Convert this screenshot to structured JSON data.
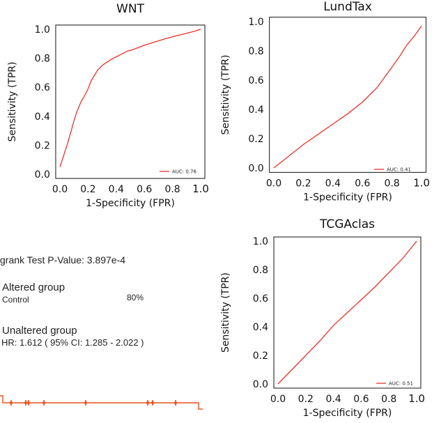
{
  "chart_data": [
    {
      "type": "line",
      "title": "WNT",
      "xlabel": "1-Specificity (FPR)",
      "ylabel": "Sensitivity (TPR)",
      "xlim": [
        0,
        1
      ],
      "ylim": [
        0,
        1
      ],
      "xticks": [
        "0.0",
        "0.2",
        "0.4",
        "0.6",
        "0.8",
        "1.0"
      ],
      "yticks": [
        "0.0",
        "0.2",
        "0.4",
        "0.6",
        "0.8",
        "1.0"
      ],
      "legend": "AUC: 0.76",
      "legend_position": "bottom-right",
      "line_color": "#e8322a",
      "series": [
        {
          "x": [
            0.0,
            0.03,
            0.06,
            0.08,
            0.1,
            0.12,
            0.15,
            0.18,
            0.2,
            0.22,
            0.25,
            0.27,
            0.3,
            0.33,
            0.36,
            0.4,
            0.44,
            0.48,
            0.52,
            0.56,
            0.6,
            0.65,
            0.7,
            0.75,
            0.8,
            0.85,
            0.9,
            0.95,
            1.0
          ],
          "y": [
            0.05,
            0.14,
            0.23,
            0.3,
            0.37,
            0.43,
            0.5,
            0.55,
            0.59,
            0.64,
            0.69,
            0.72,
            0.75,
            0.77,
            0.79,
            0.81,
            0.83,
            0.85,
            0.86,
            0.875,
            0.89,
            0.905,
            0.92,
            0.935,
            0.948,
            0.96,
            0.972,
            0.985,
            1.0
          ]
        }
      ]
    },
    {
      "type": "line",
      "title": "LundTax",
      "xlabel": "1-Specificity (FPR)",
      "ylabel": "Sensitivity (TPR)",
      "xlim": [
        0,
        1
      ],
      "ylim": [
        0,
        1
      ],
      "xticks": [
        "0.0",
        "0.2",
        "0.4",
        "0.6",
        "0.8",
        "1.0"
      ],
      "yticks": [
        "0.0",
        "0.2",
        "0.4",
        "0.6",
        "0.8",
        "1.0"
      ],
      "legend": "AUC: 0.41",
      "legend_position": "bottom-right",
      "line_color": "#e8322a",
      "series": [
        {
          "x": [
            0.0,
            0.1,
            0.2,
            0.3,
            0.4,
            0.5,
            0.6,
            0.65,
            0.7,
            0.75,
            0.8,
            0.85,
            0.9,
            0.95,
            1.0
          ],
          "y": [
            0.0,
            0.08,
            0.16,
            0.23,
            0.3,
            0.37,
            0.45,
            0.5,
            0.55,
            0.62,
            0.69,
            0.76,
            0.84,
            0.9,
            0.97
          ]
        }
      ]
    },
    {
      "type": "line",
      "title": "TCGAclas",
      "xlabel": "1-Specificity (FPR)",
      "ylabel": "Sensitivity (TPR)",
      "xlim": [
        0,
        1
      ],
      "ylim": [
        0,
        1
      ],
      "xticks": [
        "0.0",
        "0.2",
        "0.4",
        "0.6",
        "0.8",
        "1.0"
      ],
      "yticks": [
        "0.0",
        "0.2",
        "0.4",
        "0.6",
        "0.8",
        "1.0"
      ],
      "legend": "AUC: 0.51",
      "legend_position": "bottom-right",
      "line_color": "#e8322a",
      "series": [
        {
          "x": [
            0.0,
            0.1,
            0.2,
            0.3,
            0.4,
            0.5,
            0.6,
            0.7,
            0.8,
            0.9,
            1.0
          ],
          "y": [
            0.0,
            0.1,
            0.2,
            0.3,
            0.41,
            0.5,
            0.59,
            0.68,
            0.78,
            0.88,
            1.0
          ]
        }
      ]
    }
  ],
  "km": {
    "pvalue_text": "grank Test P-Value: 3.897e-4",
    "altered_label": "Altered group",
    "control_label": "Control",
    "percent_label": "80%",
    "unaltered_label": "Unaltered group",
    "hr_text": "HR: 1.612 ( 95% CI: 1.285 - 2.022 )",
    "line_color": "#e8501e"
  }
}
